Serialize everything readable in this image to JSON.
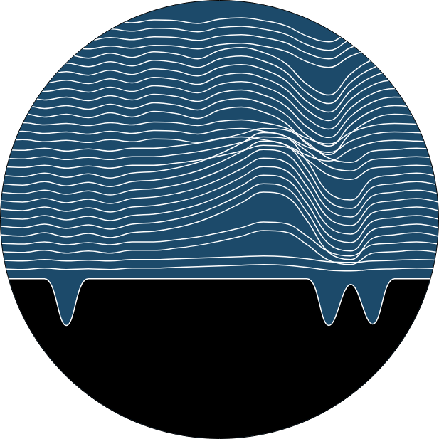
{
  "chart_data": {
    "type": "line",
    "color": "#ffffff",
    "tick_labels": false,
    "grid": false,
    "xlim": [
      0,
      600
    ],
    "ylim": [
      0,
      617
    ],
    "x": [
      0,
      30,
      60,
      90,
      120,
      150,
      180,
      210,
      240,
      270,
      300,
      330,
      360,
      390,
      420,
      450,
      480,
      510,
      540,
      570,
      600
    ],
    "series": [
      {
        "type": "area",
        "color": "#000000",
        "values": [
          392,
          392,
          392,
          458,
          392,
          392,
          392,
          392,
          392,
          392,
          392,
          392,
          392,
          392,
          392,
          458,
          400,
          456,
          392,
          392,
          392
        ]
      },
      {
        "values": [
          30,
          28,
          31,
          29,
          32,
          28,
          31,
          27,
          28,
          32,
          26,
          24,
          28,
          35,
          50,
          58,
          42,
          32,
          29,
          30,
          32
        ]
      },
      {
        "values": [
          42,
          40,
          43,
          41,
          44,
          40,
          43,
          39,
          40,
          44,
          38,
          36,
          40,
          47,
          62,
          70,
          54,
          44,
          41,
          42,
          44
        ]
      },
      {
        "values": [
          54,
          52,
          55,
          53,
          56,
          52,
          55,
          51,
          52,
          56,
          50,
          48,
          52,
          59,
          74,
          82,
          66,
          56,
          53,
          54,
          56
        ]
      },
      {
        "values": [
          66,
          64,
          67,
          65,
          68,
          64,
          67,
          63,
          64,
          68,
          62,
          60,
          64,
          71,
          86,
          94,
          78,
          68,
          65,
          66,
          68
        ]
      },
      {
        "values": [
          78,
          75,
          80,
          76,
          81,
          74,
          80,
          72,
          75,
          82,
          70,
          66,
          73,
          88,
          118,
          133,
          103,
          83,
          76,
          78,
          81
        ]
      },
      {
        "values": [
          90,
          87,
          92,
          88,
          93,
          86,
          92,
          84,
          87,
          94,
          82,
          78,
          85,
          100,
          130,
          145,
          115,
          95,
          88,
          90,
          93
        ]
      },
      {
        "values": [
          102,
          99,
          104,
          100,
          105,
          98,
          104,
          96,
          99,
          106,
          94,
          90,
          97,
          112,
          142,
          157,
          127,
          107,
          100,
          102,
          105
        ]
      },
      {
        "values": [
          114,
          111,
          116,
          112,
          117,
          110,
          116,
          108,
          111,
          118,
          106,
          102,
          109,
          124,
          154,
          169,
          139,
          119,
          112,
          114,
          117
        ]
      },
      {
        "values": [
          126,
          123,
          128,
          124,
          129,
          122,
          128,
          120,
          123,
          130,
          118,
          114,
          121,
          136,
          166,
          181,
          151,
          131,
          124,
          126,
          129
        ]
      },
      {
        "values": [
          138,
          135,
          140,
          136,
          141,
          134,
          140,
          132,
          135,
          142,
          130,
          126,
          133,
          148,
          178,
          193,
          163,
          143,
          136,
          138,
          141
        ]
      },
      {
        "values": [
          150,
          147,
          152,
          148,
          153,
          146,
          152,
          144,
          147,
          154,
          142,
          138,
          145,
          160,
          190,
          205,
          175,
          155,
          148,
          150,
          153
        ]
      },
      {
        "values": [
          162,
          159,
          164,
          160,
          165,
          158,
          164,
          156,
          159,
          166,
          154,
          150,
          157,
          172,
          202,
          217,
          187,
          167,
          160,
          162,
          165
        ]
      },
      {
        "values": [
          174,
          172,
          175,
          173,
          176,
          172,
          175,
          171,
          172,
          176,
          170,
          168,
          172,
          179,
          194,
          202,
          186,
          176,
          173,
          174,
          176
        ]
      },
      {
        "values": [
          186,
          184,
          187,
          185,
          188,
          184,
          187,
          183,
          184,
          188,
          182,
          180,
          184,
          191,
          206,
          214,
          198,
          188,
          185,
          186,
          188
        ]
      },
      {
        "values": [
          198,
          196,
          199,
          197,
          200,
          196,
          199,
          195,
          196,
          200,
          194,
          192,
          196,
          203,
          218,
          226,
          210,
          200,
          197,
          198,
          200
        ]
      },
      {
        "values": [
          210,
          211,
          208,
          212,
          209,
          212,
          208,
          208,
          205,
          201,
          195,
          188,
          180,
          182,
          200,
          222,
          228,
          212,
          210,
          208,
          211
        ]
      },
      {
        "values": [
          222,
          223,
          220,
          224,
          221,
          224,
          220,
          220,
          217,
          213,
          207,
          200,
          192,
          194,
          212,
          234,
          240,
          224,
          222,
          220,
          223
        ]
      },
      {
        "values": [
          234,
          235,
          232,
          236,
          233,
          236,
          232,
          232,
          229,
          225,
          219,
          212,
          204,
          206,
          224,
          246,
          252,
          236,
          234,
          232,
          235
        ]
      },
      {
        "values": [
          246,
          248,
          243,
          249,
          244,
          250,
          243,
          241,
          236,
          228,
          216,
          201,
          186,
          191,
          226,
          271,
          281,
          251,
          246,
          243,
          248
        ]
      },
      {
        "values": [
          258,
          260,
          255,
          261,
          256,
          262,
          255,
          253,
          248,
          240,
          228,
          213,
          198,
          203,
          238,
          283,
          293,
          263,
          258,
          255,
          260
        ]
      },
      {
        "values": [
          270,
          272,
          267,
          273,
          268,
          274,
          267,
          265,
          260,
          252,
          240,
          225,
          210,
          215,
          250,
          295,
          305,
          275,
          270,
          267,
          272
        ]
      },
      {
        "values": [
          282,
          284,
          279,
          285,
          280,
          286,
          279,
          277,
          272,
          264,
          252,
          237,
          222,
          227,
          262,
          307,
          317,
          287,
          282,
          279,
          284
        ]
      },
      {
        "values": [
          294,
          296,
          291,
          297,
          292,
          298,
          291,
          289,
          284,
          276,
          264,
          249,
          234,
          239,
          274,
          319,
          329,
          299,
          294,
          291,
          296
        ]
      },
      {
        "values": [
          306,
          308,
          303,
          309,
          304,
          310,
          303,
          301,
          296,
          288,
          276,
          261,
          246,
          251,
          286,
          331,
          341,
          311,
          306,
          303,
          308
        ]
      },
      {
        "values": [
          318,
          320,
          315,
          321,
          316,
          322,
          315,
          313,
          308,
          300,
          288,
          273,
          258,
          263,
          298,
          343,
          353,
          323,
          318,
          315,
          320
        ]
      },
      {
        "values": [
          330,
          332,
          327,
          333,
          328,
          334,
          327,
          325,
          320,
          312,
          300,
          285,
          270,
          275,
          310,
          355,
          365,
          335,
          330,
          327,
          332
        ]
      },
      {
        "values": [
          342,
          343,
          340,
          344,
          341,
          344,
          340,
          340,
          337,
          333,
          327,
          320,
          312,
          314,
          332,
          354,
          360,
          344,
          342,
          340,
          343
        ]
      },
      {
        "values": [
          354,
          355,
          352,
          356,
          353,
          356,
          352,
          352,
          349,
          345,
          339,
          332,
          324,
          326,
          344,
          366,
          372,
          356,
          354,
          352,
          355
        ]
      },
      {
        "values": [
          366,
          367,
          365,
          367,
          366,
          367,
          365,
          365,
          364,
          363,
          362,
          361,
          360,
          361,
          364,
          368,
          369,
          367,
          366,
          365,
          366
        ]
      },
      {
        "values": [
          378,
          379,
          377,
          379,
          378,
          379,
          377,
          377,
          376,
          375,
          374,
          373,
          372,
          373,
          376,
          380,
          381,
          379,
          378,
          377,
          378
        ]
      }
    ]
  }
}
